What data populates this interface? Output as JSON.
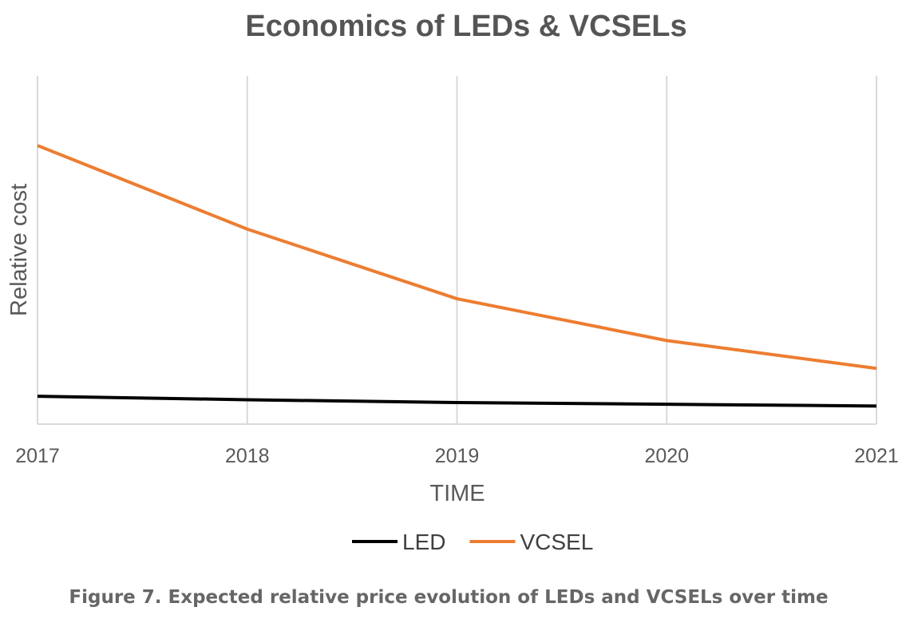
{
  "caption": "Figure 7. Expected relative price evolution of LEDs and VCSELs over time",
  "chart_data": {
    "type": "line",
    "title": "Economics of LEDs & VCSELs",
    "xlabel": "TIME",
    "ylabel": "Relative cost",
    "categories": [
      "2017",
      "2018",
      "2019",
      "2020",
      "2021"
    ],
    "ylim": [
      0,
      100
    ],
    "y_tick_labels_shown": false,
    "grid": "vertical",
    "legend": "bottom",
    "series": [
      {
        "name": "LED",
        "color": "#000000",
        "values": [
          8,
          7,
          6.2,
          5.7,
          5.2
        ]
      },
      {
        "name": "VCSEL",
        "color": "#ED7D31",
        "values": [
          80,
          56,
          36,
          24,
          16
        ]
      }
    ]
  }
}
